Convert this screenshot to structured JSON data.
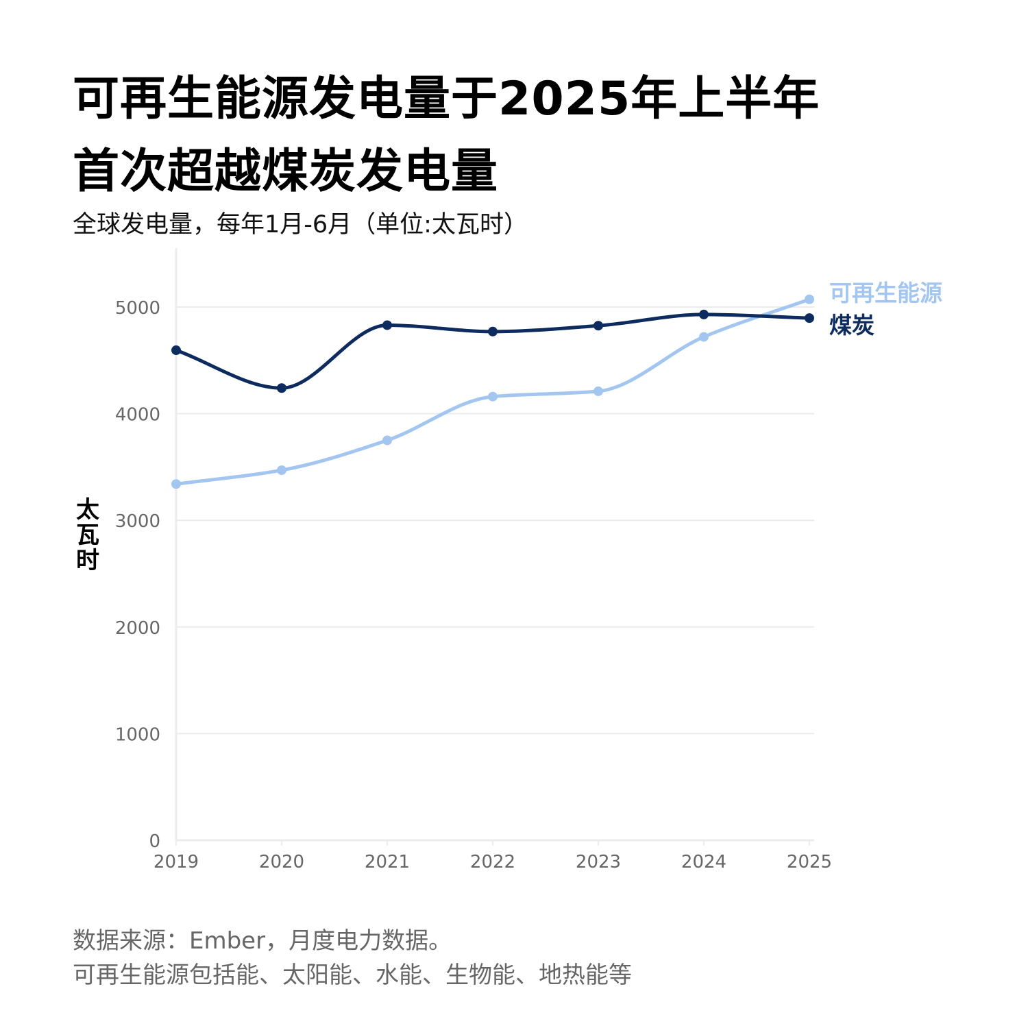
{
  "title_line1": "可再生能源发电量于2025年上半年",
  "title_line2": "首次超越煤炭发电量",
  "subtitle": "全球发电量，每年1月-6月（单位:太瓦时）",
  "footer_line1": "数据来源：Ember，月度电力数据。",
  "footer_line2": "可再生能源包括能、太阳能、水能、生物能、地热能等",
  "colors": {
    "coal": "#0d2b5e",
    "renewables": "#a3c6f1",
    "grid": "#ececec",
    "axis_text": "#666666"
  },
  "chart_data": {
    "type": "line",
    "title": "可再生能源发电量于2025年上半年首次超越煤炭发电量",
    "subtitle": "全球发电量，每年1月-6月（单位:太瓦时）",
    "ylabel": "太瓦时",
    "x": [
      "2019",
      "2020",
      "2021",
      "2022",
      "2023",
      "2024",
      "2025"
    ],
    "ylim": [
      0,
      5500
    ],
    "yticks": [
      0,
      1000,
      2000,
      3000,
      4000,
      5000
    ],
    "grid": true,
    "legend": "direct-labels-right",
    "series": [
      {
        "name": "可再生能源",
        "color": "#a3c6f1",
        "values": [
          3340,
          3470,
          3750,
          4160,
          4210,
          4720,
          5072
        ]
      },
      {
        "name": "煤炭",
        "color": "#0d2b5e",
        "values": [
          4595,
          4240,
          4830,
          4770,
          4825,
          4930,
          4896
        ]
      }
    ]
  }
}
